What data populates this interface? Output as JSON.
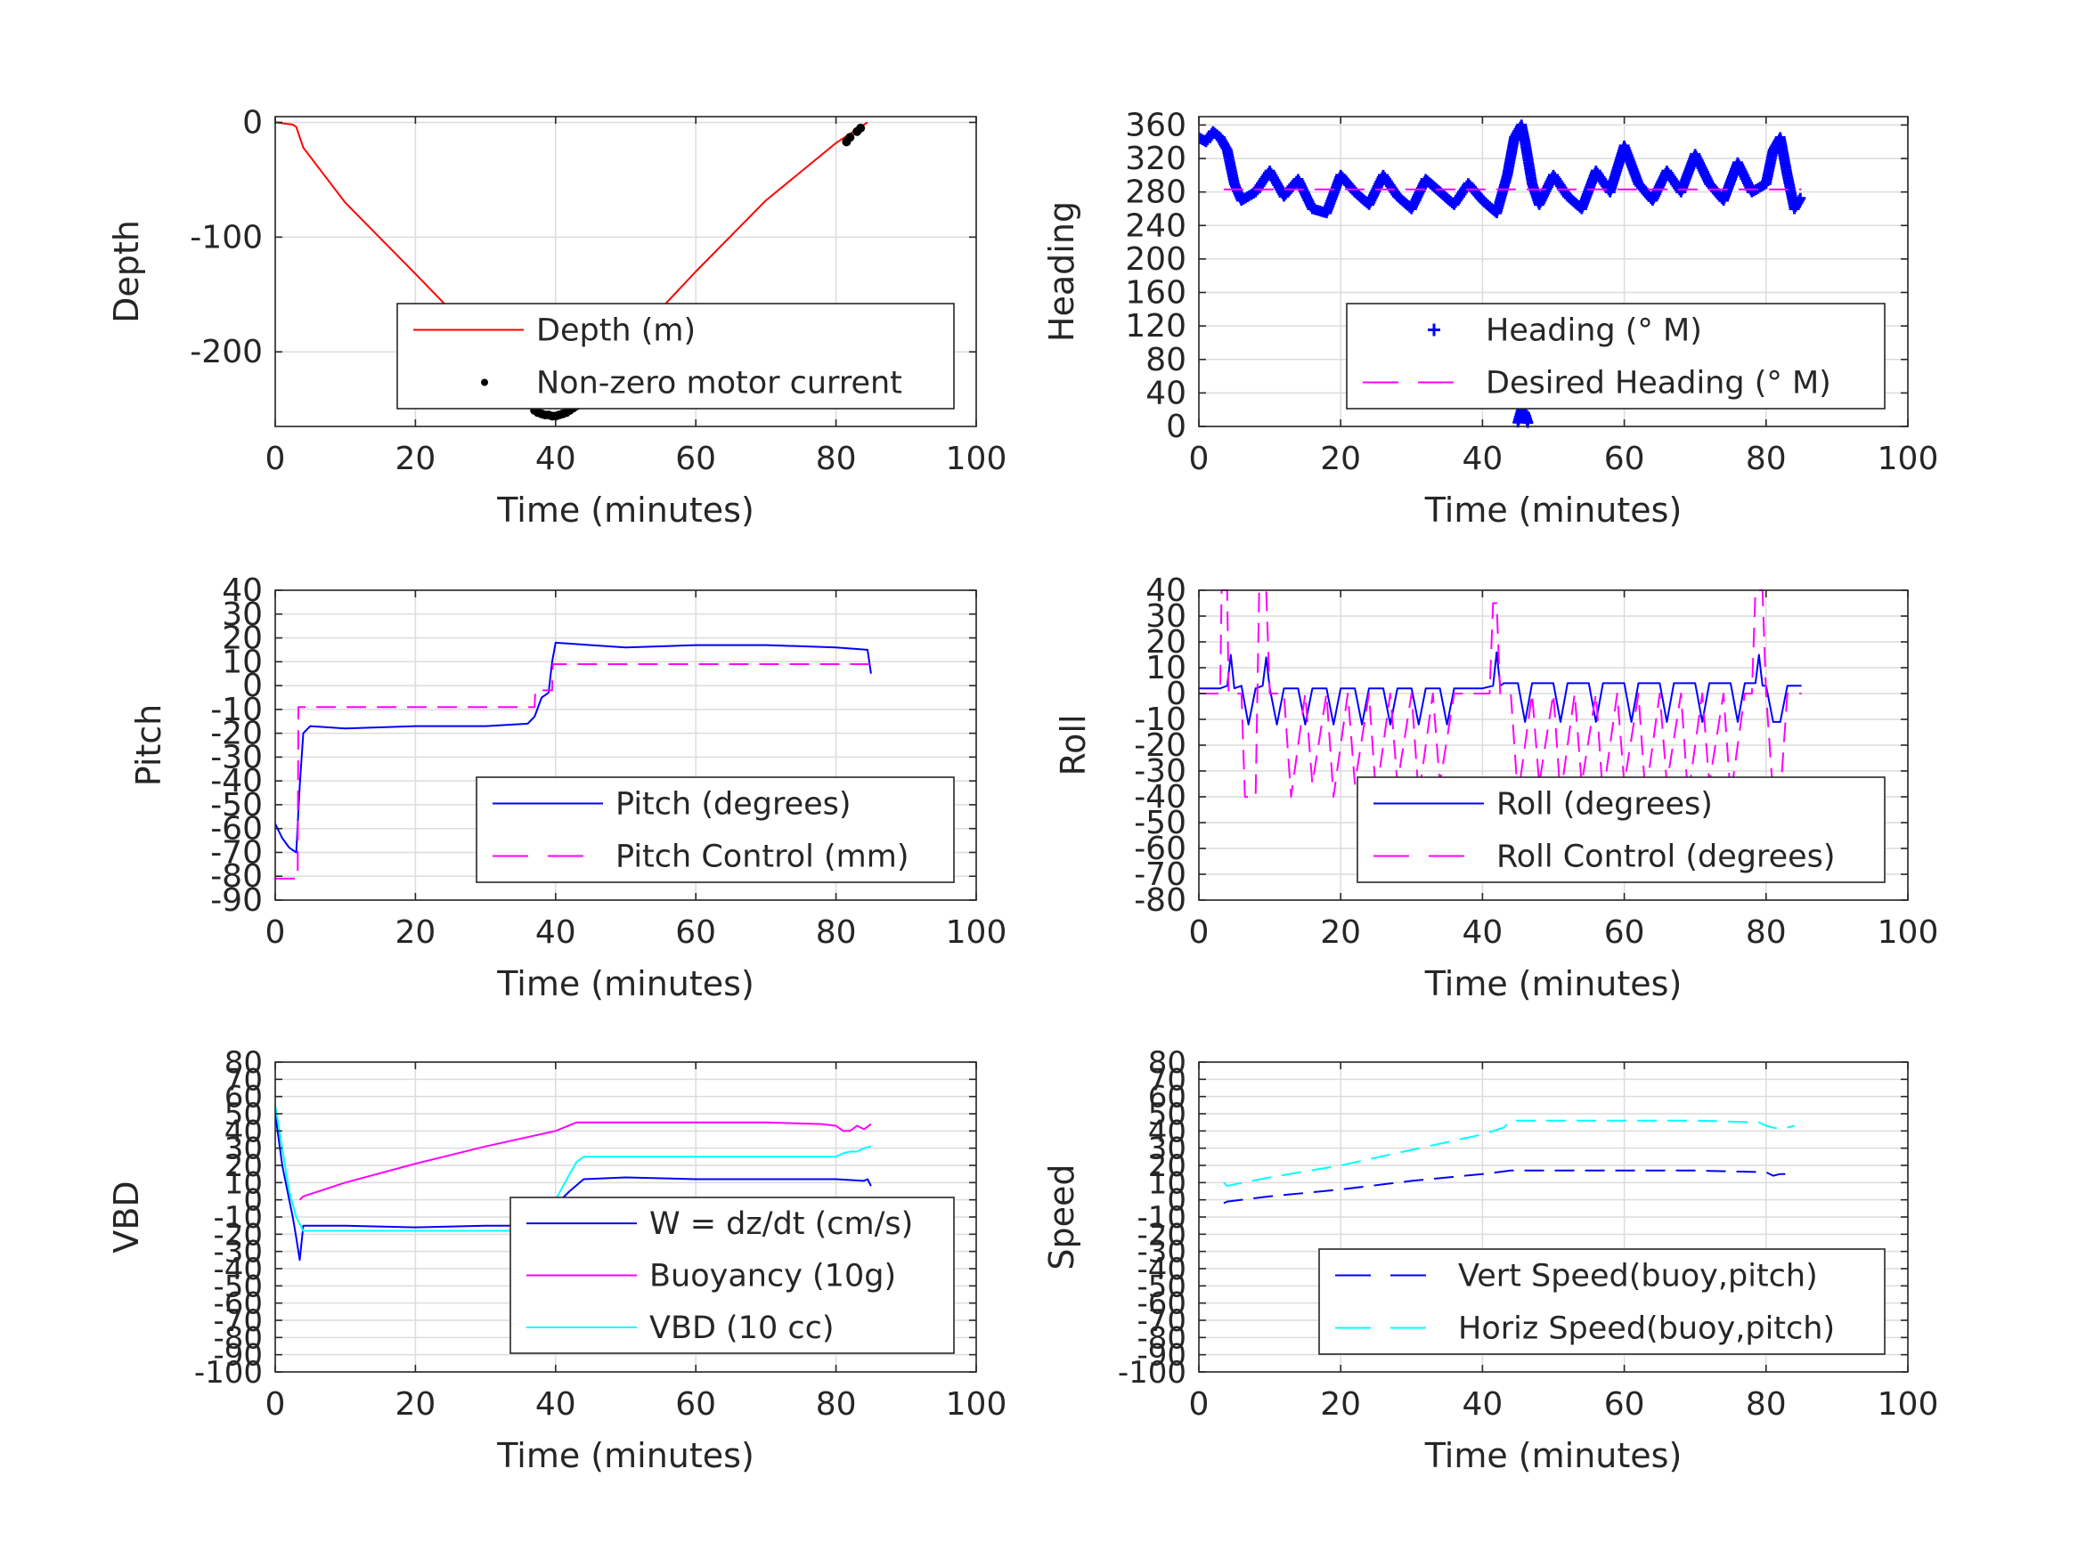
{
  "chart_data": [
    {
      "type": "line",
      "xlabel": "Time (minutes)",
      "ylabel": "Depth",
      "xlim": [
        0,
        100
      ],
      "ylim": [
        -265,
        5
      ],
      "xticks": [
        0,
        20,
        40,
        60,
        80,
        100
      ],
      "yticks": [
        0,
        -100,
        -200
      ],
      "grid": true,
      "legend_position": "bottom-right",
      "series": [
        {
          "name": "Depth (m)",
          "style": "solid",
          "color": "#ff0000",
          "x": [
            0,
            2.5,
            3,
            4,
            10,
            20,
            30,
            36,
            37.5,
            39,
            40.5,
            42,
            43.5,
            50,
            60,
            70,
            80,
            82,
            84.5
          ],
          "y": [
            0,
            -2,
            -4,
            -22,
            -70,
            -132,
            -195,
            -240,
            -252,
            -255,
            -255,
            -251,
            -245,
            -195,
            -130,
            -68,
            -18,
            -10,
            0
          ]
        },
        {
          "name": "Non-zero motor current",
          "style": "dots",
          "color": "#000000",
          "x": [
            37,
            37.5,
            38,
            38.5,
            39,
            39.5,
            40,
            40.5,
            41,
            41.5,
            42,
            42.5,
            43,
            43.5,
            81.5,
            82,
            83,
            83.5
          ],
          "y": [
            -251,
            -253,
            -254,
            -255,
            -255,
            -256,
            -256,
            -255,
            -254,
            -253,
            -251,
            -249,
            -247,
            -245,
            -17,
            -13,
            -8,
            -5
          ]
        }
      ]
    },
    {
      "type": "scatter",
      "xlabel": "Time (minutes)",
      "ylabel": "Heading",
      "xlim": [
        0,
        100
      ],
      "ylim": [
        0,
        370
      ],
      "xticks": [
        0,
        20,
        40,
        60,
        80,
        100
      ],
      "yticks": [
        0,
        40,
        80,
        120,
        160,
        200,
        240,
        280,
        320,
        360
      ],
      "grid": true,
      "legend_position": "bottom-right",
      "series": [
        {
          "name": "Heading (° M)",
          "style": "plus",
          "color": "#0000ff",
          "x": [
            0,
            1,
            2,
            3,
            4,
            5,
            6,
            8,
            10,
            12,
            14,
            16,
            18,
            20,
            22,
            24,
            26,
            28,
            30,
            32,
            34,
            36,
            38,
            40,
            42,
            43.5,
            44.5,
            45.5,
            46,
            47,
            48,
            50,
            52,
            54,
            56,
            58,
            60,
            62,
            64,
            66,
            68,
            70,
            72,
            74,
            76,
            78,
            80,
            81,
            82,
            83,
            84,
            85
          ],
          "y": [
            345,
            340,
            352,
            345,
            330,
            290,
            270,
            280,
            305,
            275,
            295,
            260,
            255,
            300,
            280,
            265,
            300,
            275,
            260,
            295,
            280,
            265,
            290,
            270,
            255,
            300,
            345,
            360,
            340,
            290,
            265,
            300,
            275,
            260,
            305,
            280,
            335,
            290,
            270,
            305,
            280,
            325,
            290,
            270,
            315,
            280,
            290,
            330,
            345,
            300,
            260,
            275
          ]
        },
        {
          "name": "Heading (° M)",
          "style": "plus",
          "color": "#0000ff",
          "x": [
            45,
            45.5,
            46,
            46.5
          ],
          "y": [
            5,
            20,
            15,
            2
          ]
        },
        {
          "name": "Desired Heading (° M)",
          "style": "dashed",
          "color": "#ff00ff",
          "x": [
            3.5,
            85
          ],
          "y": [
            283,
            283
          ]
        }
      ]
    },
    {
      "type": "line",
      "xlabel": "Time (minutes)",
      "ylabel": "Pitch",
      "xlim": [
        0,
        100
      ],
      "ylim": [
        -90,
        40
      ],
      "xticks": [
        0,
        20,
        40,
        60,
        80,
        100
      ],
      "yticks": [
        40,
        30,
        20,
        10,
        0,
        -10,
        -20,
        -30,
        -40,
        -50,
        -60,
        -70,
        -80,
        -90
      ],
      "grid": true,
      "legend_position": "bottom-right",
      "series": [
        {
          "name": "Pitch (degrees)",
          "style": "solid",
          "color": "#0000ff",
          "x": [
            0,
            1,
            2,
            3,
            3.5,
            4,
            5,
            10,
            20,
            30,
            36,
            37,
            38,
            39,
            39.5,
            40,
            45,
            50,
            60,
            70,
            80,
            84.5,
            85
          ],
          "y": [
            -58,
            -64,
            -68,
            -70,
            -42,
            -20,
            -17,
            -18,
            -17,
            -17,
            -16,
            -13,
            -5,
            -3,
            10,
            18,
            17,
            16,
            17,
            17,
            16,
            15,
            5
          ]
        },
        {
          "name": "Pitch Control (mm)",
          "style": "dashed",
          "color": "#ff00ff",
          "x": [
            0,
            3.2,
            3.3,
            37,
            37.1,
            39.5,
            39.6,
            85
          ],
          "y": [
            -81,
            -81,
            -9,
            -9,
            -2,
            -2,
            9,
            9
          ]
        }
      ]
    },
    {
      "type": "line",
      "xlabel": "Time (minutes)",
      "ylabel": "Roll",
      "xlim": [
        0,
        100
      ],
      "ylim": [
        -80,
        40
      ],
      "xticks": [
        0,
        20,
        40,
        60,
        80,
        100
      ],
      "yticks": [
        40,
        30,
        20,
        10,
        0,
        -10,
        -20,
        -30,
        -40,
        -50,
        -60,
        -70,
        -80
      ],
      "grid": true,
      "legend_position": "bottom-right",
      "series": [
        {
          "name": "Roll (degrees)",
          "style": "solid",
          "color": "#0000ff",
          "x": [
            0,
            3,
            4,
            4.5,
            5,
            6,
            7,
            8,
            9,
            9.5,
            10,
            11,
            12,
            14,
            15,
            16,
            18,
            19,
            20,
            22,
            23,
            24,
            26,
            27,
            28,
            30,
            31,
            32,
            34,
            35,
            36,
            38,
            40,
            41.5,
            42,
            42.5,
            43,
            45,
            46,
            47,
            50,
            51,
            52,
            55,
            56,
            57,
            60,
            61,
            62,
            65,
            66,
            67,
            70,
            71,
            72,
            75,
            76,
            77,
            78.5,
            79,
            79.5,
            80,
            81,
            82,
            83,
            85
          ],
          "y": [
            2,
            2,
            3,
            15,
            2,
            3,
            -12,
            2,
            3,
            14,
            2,
            -12,
            2,
            2,
            -12,
            2,
            2,
            -12,
            2,
            2,
            -12,
            2,
            2,
            -12,
            2,
            2,
            -12,
            2,
            2,
            -12,
            2,
            2,
            2,
            3,
            16,
            3,
            4,
            4,
            -11,
            4,
            4,
            -11,
            4,
            4,
            -11,
            4,
            4,
            -11,
            4,
            4,
            -11,
            4,
            4,
            -11,
            4,
            4,
            -11,
            4,
            4,
            15,
            3,
            3,
            -11,
            -11,
            3,
            3
          ]
        },
        {
          "name": "Roll Control (degrees)",
          "style": "dashed",
          "color": "#ff00ff",
          "x": [
            0,
            3,
            3.2,
            4,
            4.2,
            6,
            6.5,
            8,
            8.5,
            9.5,
            10,
            12,
            13,
            15,
            16,
            18,
            19,
            21,
            22,
            24,
            25,
            27,
            28,
            30,
            31,
            33,
            34,
            36,
            37,
            41,
            41.5,
            42,
            42.5,
            44,
            45,
            47,
            48,
            50,
            51,
            53,
            54,
            56,
            57,
            59,
            60,
            62,
            63,
            65,
            66,
            68,
            69,
            71,
            72,
            74,
            75,
            77,
            78,
            78.5,
            79.5,
            80,
            81,
            82,
            83,
            85
          ],
          "y": [
            0,
            0,
            40,
            40,
            0,
            0,
            -40,
            -40,
            40,
            40,
            0,
            0,
            -40,
            0,
            -35,
            0,
            -40,
            0,
            -35,
            0,
            -40,
            0,
            -35,
            0,
            -40,
            0,
            -35,
            0,
            0,
            0,
            35,
            35,
            0,
            0,
            -40,
            0,
            -35,
            0,
            -40,
            0,
            -35,
            0,
            -40,
            0,
            -35,
            0,
            -40,
            0,
            -35,
            0,
            -40,
            0,
            -35,
            0,
            -40,
            0,
            0,
            40,
            40,
            0,
            -40,
            -40,
            0,
            0
          ]
        }
      ]
    },
    {
      "type": "line",
      "xlabel": "Time (minutes)",
      "ylabel": "VBD",
      "xlim": [
        0,
        100
      ],
      "ylim": [
        -100,
        80
      ],
      "xticks": [
        0,
        20,
        40,
        60,
        80,
        100
      ],
      "yticks": [
        80,
        70,
        60,
        50,
        40,
        30,
        20,
        10,
        0,
        -10,
        -20,
        -30,
        -40,
        -50,
        -60,
        -70,
        -80,
        -90,
        -100
      ],
      "grid": true,
      "legend_position": "bottom-right",
      "series": [
        {
          "name": "W = dz/dt (cm/s)",
          "style": "solid",
          "color": "#0000ff",
          "x": [
            0,
            1,
            2,
            2.5,
            3,
            3.5,
            4,
            10,
            20,
            30,
            36,
            37,
            38,
            40,
            42,
            44,
            50,
            60,
            70,
            80,
            84,
            84.5,
            85
          ],
          "y": [
            50,
            20,
            0,
            -10,
            -22,
            -35,
            -15,
            -15,
            -16,
            -15,
            -15,
            -14,
            -10,
            -3,
            5,
            12,
            13,
            12,
            12,
            12,
            11,
            12,
            8
          ]
        },
        {
          "name": "Buoyancy (10g)",
          "style": "solid",
          "color": "#ff00ff",
          "x": [
            3.5,
            4,
            10,
            20,
            30,
            40,
            43,
            44,
            50,
            60,
            70,
            78,
            80,
            81,
            82,
            83,
            84,
            85
          ],
          "y": [
            0,
            2,
            10,
            21,
            31,
            40,
            45,
            45,
            45,
            45,
            45,
            44,
            43,
            40,
            40,
            43,
            41,
            44
          ]
        },
        {
          "name": "VBD (10 cc)",
          "style": "solid",
          "color": "#00ffff",
          "x": [
            0,
            1,
            2,
            3,
            4,
            10,
            20,
            30,
            36,
            37,
            38,
            40,
            42,
            43,
            44,
            50,
            60,
            70,
            80,
            81,
            82,
            83,
            84,
            85
          ],
          "y": [
            55,
            30,
            5,
            -10,
            -18,
            -18,
            -18,
            -18,
            -18,
            -17,
            -12,
            0,
            15,
            22,
            25,
            25,
            25,
            25,
            25,
            27,
            28,
            28,
            30,
            31
          ]
        }
      ]
    },
    {
      "type": "line",
      "xlabel": "Time (minutes)",
      "ylabel": "Speed",
      "xlim": [
        0,
        100
      ],
      "ylim": [
        -100,
        80
      ],
      "xticks": [
        0,
        20,
        40,
        60,
        80,
        100
      ],
      "yticks": [
        80,
        70,
        60,
        50,
        40,
        30,
        20,
        10,
        0,
        -10,
        -20,
        -30,
        -40,
        -50,
        -60,
        -70,
        -80,
        -90,
        -100
      ],
      "grid": true,
      "legend_position": "bottom-right",
      "series": [
        {
          "name": "Vert Speed(buoy,pitch)",
          "style": "dashed",
          "color": "#0000ff",
          "x": [
            3.5,
            4,
            10,
            20,
            30,
            40,
            44,
            50,
            60,
            70,
            80,
            81,
            82,
            83,
            84
          ],
          "y": [
            -2,
            -1,
            2,
            6,
            11,
            15,
            17,
            17,
            17,
            17,
            16,
            14,
            15,
            15,
            16
          ]
        },
        {
          "name": "Horiz Speed(buoy,pitch)",
          "style": "dashed",
          "color": "#00ffff",
          "x": [
            3.5,
            4,
            5,
            10,
            20,
            30,
            40,
            43,
            44,
            50,
            60,
            70,
            79,
            80,
            81,
            82,
            83,
            84
          ],
          "y": [
            10,
            8,
            9,
            13,
            20,
            29,
            38,
            42,
            46,
            46,
            46,
            46,
            45,
            43,
            42,
            41,
            42,
            43
          ]
        }
      ]
    }
  ]
}
